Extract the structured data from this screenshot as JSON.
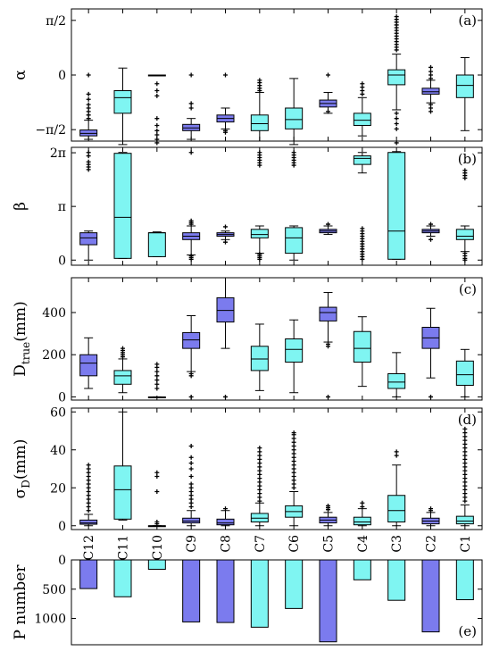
{
  "colors": {
    "blue": "#7b7bee",
    "cyan": "#7ff5f2",
    "stroke": "#000000"
  },
  "chart_data": {
    "type": "boxplot",
    "categories": [
      "C12",
      "C11",
      "C10",
      "C9",
      "C8",
      "C7",
      "C6",
      "C5",
      "C4",
      "C3",
      "C2",
      "C1"
    ],
    "category_colors": [
      "blue",
      "cyan",
      "cyan",
      "blue",
      "blue",
      "cyan",
      "cyan",
      "blue",
      "cyan",
      "cyan",
      "blue",
      "cyan"
    ],
    "panels": [
      {
        "label": "(a)",
        "ylabel": "α",
        "ylim": [
          -1.9,
          1.9
        ],
        "ticks": [
          {
            "v": 1.5708,
            "t": "π/2"
          },
          {
            "v": 0,
            "t": "0"
          },
          {
            "v": -1.5708,
            "t": "−π/2"
          }
        ],
        "boxes": [
          {
            "min": -1.85,
            "q1": -1.75,
            "med": -1.68,
            "q3": -1.58,
            "max": -1.3,
            "outliers": [
              -1.25,
              -1.15,
              -1.05,
              -0.95,
              -0.85,
              -0.7,
              -0.55,
              0.0
            ]
          },
          {
            "min": -2.0,
            "q1": -1.1,
            "med": -0.65,
            "q3": -0.45,
            "max": 0.2,
            "outliers": []
          },
          {
            "min": 0.0,
            "q1": 0.0,
            "med": 0.0,
            "q3": 0.0,
            "max": 0.0,
            "outliers": [
              -0.25,
              -0.45,
              -0.6,
              -1.25,
              -1.45,
              -1.6,
              -1.72,
              -1.85,
              -1.95
            ]
          },
          {
            "min": -1.85,
            "q1": -1.6,
            "med": -1.52,
            "q3": -1.42,
            "max": -1.25,
            "outliers": [
              -0.95,
              -0.82,
              0.0
            ]
          },
          {
            "min": -1.55,
            "q1": -1.35,
            "med": -1.25,
            "q3": -1.15,
            "max": -0.95,
            "outliers": [
              -1.6,
              -1.65,
              0.0
            ]
          },
          {
            "min": -1.9,
            "q1": -1.6,
            "med": -1.4,
            "q3": -1.15,
            "max": -0.5,
            "outliers": [
              -0.45,
              -0.38,
              -0.3,
              -0.22,
              -0.15
            ]
          },
          {
            "min": -2.0,
            "q1": -1.55,
            "med": -1.28,
            "q3": -0.95,
            "max": -0.1,
            "outliers": []
          },
          {
            "min": -1.1,
            "q1": -0.92,
            "med": -0.82,
            "q3": -0.72,
            "max": -0.5,
            "outliers": [
              -1.05,
              0.0
            ]
          },
          {
            "min": -1.75,
            "q1": -1.45,
            "med": -1.3,
            "q3": -1.1,
            "max": -0.65,
            "outliers": [
              -0.55,
              -0.45,
              -0.35,
              -0.25
            ]
          },
          {
            "min": -1.0,
            "q1": -0.28,
            "med": 0.0,
            "q3": 0.15,
            "max": 0.6,
            "outliers": [
              -1.1,
              -1.25,
              -1.4,
              -1.55,
              -1.95,
              0.72,
              0.8,
              0.88,
              0.96,
              1.04,
              1.12,
              1.2,
              1.28,
              1.36,
              1.44,
              1.52,
              1.6,
              1.68
            ]
          },
          {
            "min": -0.8,
            "q1": -0.55,
            "med": -0.48,
            "q3": -0.38,
            "max": -0.15,
            "outliers": [
              -0.85,
              -0.95,
              -1.05,
              -0.1,
              0.0,
              0.1,
              0.22
            ]
          },
          {
            "min": -1.6,
            "q1": -0.65,
            "med": -0.3,
            "q3": 0.0,
            "max": 0.5,
            "outliers": []
          }
        ]
      },
      {
        "label": "(b)",
        "ylabel": "β",
        "ylim": [
          -0.3,
          6.6
        ],
        "ticks": [
          {
            "v": 6.2832,
            "t": "2π"
          },
          {
            "v": 3.1416,
            "t": "π"
          },
          {
            "v": 0,
            "t": "0"
          }
        ],
        "boxes": [
          {
            "min": 0.0,
            "q1": 0.9,
            "med": 1.3,
            "q3": 1.6,
            "max": 1.7,
            "outliers": [
              5.3,
              5.45,
              5.6,
              5.75,
              6.1,
              6.3
            ]
          },
          {
            "min": 0.1,
            "q1": 0.1,
            "med": 2.5,
            "q3": 6.25,
            "max": 6.3,
            "outliers": []
          },
          {
            "min": 0.2,
            "q1": 0.2,
            "med": 1.6,
            "q3": 1.6,
            "max": 1.65,
            "outliers": []
          },
          {
            "min": 0.3,
            "q1": 1.2,
            "med": 1.4,
            "q3": 1.6,
            "max": 2.0,
            "outliers": [
              0.05,
              0.15,
              0.25,
              2.1,
              2.2,
              2.3,
              6.3
            ]
          },
          {
            "min": 1.2,
            "q1": 1.4,
            "med": 1.5,
            "q3": 1.6,
            "max": 1.7,
            "outliers": [
              1.05,
              1.95
            ]
          },
          {
            "min": 0.4,
            "q1": 1.3,
            "med": 1.5,
            "q3": 1.8,
            "max": 2.0,
            "outliers": [
              0.05,
              0.15,
              0.25,
              0.35,
              5.55,
              5.7,
              5.85,
              6.0,
              6.15,
              6.3
            ]
          },
          {
            "min": 0.0,
            "q1": 0.4,
            "med": 1.3,
            "q3": 1.9,
            "max": 2.0,
            "outliers": [
              5.55,
              5.7,
              5.85,
              6.0,
              6.15,
              6.3
            ]
          },
          {
            "min": 1.5,
            "q1": 1.6,
            "med": 1.7,
            "q3": 1.8,
            "max": 2.0,
            "outliers": [
              2.1
            ]
          },
          {
            "min": 5.1,
            "q1": 5.6,
            "med": 5.95,
            "q3": 6.1,
            "max": 6.3,
            "outliers": [
              0.05,
              0.2,
              0.35,
              0.5,
              0.65,
              0.8,
              0.95,
              1.1,
              1.25,
              1.4,
              1.55,
              1.7,
              1.85
            ]
          },
          {
            "min": 0.05,
            "q1": 0.05,
            "med": 1.7,
            "q3": 6.3,
            "max": 6.35,
            "outliers": []
          },
          {
            "min": 1.4,
            "q1": 1.6,
            "med": 1.7,
            "q3": 1.8,
            "max": 2.0,
            "outliers": [
              1.2,
              2.1
            ]
          },
          {
            "min": 0.5,
            "q1": 1.2,
            "med": 1.4,
            "q3": 1.8,
            "max": 2.0,
            "outliers": [
              0.0,
              0.1,
              0.25,
              0.4,
              4.8,
              4.95,
              5.1,
              5.25
            ]
          }
        ]
      },
      {
        "label": "(c)",
        "ylabel": "D",
        "ylabel_sub": "true",
        "ylabel_tail": "(mm)",
        "ylim": [
          -15,
          565
        ],
        "ticks": [
          {
            "v": 400,
            "t": "400"
          },
          {
            "v": 200,
            "t": "200"
          },
          {
            "v": 0,
            "t": "0"
          }
        ],
        "boxes": [
          {
            "min": 40,
            "q1": 100,
            "med": 160,
            "q3": 200,
            "max": 280,
            "outliers": []
          },
          {
            "min": 20,
            "q1": 60,
            "med": 100,
            "q3": 125,
            "max": 180,
            "outliers": [
              190,
              200,
              210,
              220,
              230
            ]
          },
          {
            "min": 0,
            "q1": 0,
            "med": 0,
            "q3": 0,
            "max": 0,
            "outliers": [
              40,
              60,
              80,
              100,
              120,
              140,
              155
            ]
          },
          {
            "min": 120,
            "q1": 230,
            "med": 270,
            "q3": 305,
            "max": 385,
            "outliers": [
              0,
              100,
              110
            ]
          },
          {
            "min": 230,
            "q1": 355,
            "med": 410,
            "q3": 470,
            "max": 565,
            "outliers": [
              0
            ]
          },
          {
            "min": 30,
            "q1": 125,
            "med": 180,
            "q3": 240,
            "max": 345,
            "outliers": []
          },
          {
            "min": 20,
            "q1": 165,
            "med": 225,
            "q3": 275,
            "max": 365,
            "outliers": []
          },
          {
            "min": 260,
            "q1": 360,
            "med": 400,
            "q3": 425,
            "max": 495,
            "outliers": [
              0,
              240,
              250
            ]
          },
          {
            "min": 50,
            "q1": 165,
            "med": 230,
            "q3": 310,
            "max": 380,
            "outliers": []
          },
          {
            "min": 0,
            "q1": 40,
            "med": 70,
            "q3": 110,
            "max": 210,
            "outliers": []
          },
          {
            "min": 90,
            "q1": 230,
            "med": 280,
            "q3": 330,
            "max": 420,
            "outliers": [
              0
            ]
          },
          {
            "min": 0,
            "q1": 55,
            "med": 105,
            "q3": 170,
            "max": 225,
            "outliers": []
          }
        ]
      },
      {
        "label": "(d)",
        "ylabel": "σ",
        "ylabel_sub": "D",
        "ylabel_tail": "(mm)",
        "ylim": [
          -2,
          62
        ],
        "ticks": [
          {
            "v": 60,
            "t": "60"
          },
          {
            "v": 40,
            "t": "40"
          },
          {
            "v": 20,
            "t": "20"
          },
          {
            "v": 0,
            "t": "0"
          }
        ],
        "boxes": [
          {
            "min": 0,
            "q1": 0.8,
            "med": 1.5,
            "q3": 3,
            "max": 6,
            "outliers": [
              8,
              10,
              12,
              14,
              16,
              18,
              20,
              22,
              24,
              26,
              28,
              30,
              32
            ]
          },
          {
            "min": 3,
            "q1": 3.5,
            "med": 19,
            "q3": 31.5,
            "max": 60,
            "outliers": []
          },
          {
            "min": 0,
            "q1": 0,
            "med": 0,
            "q3": 0,
            "max": 0,
            "outliers": [
              1,
              2,
              18,
              26,
              28
            ]
          },
          {
            "min": 0,
            "q1": 1.5,
            "med": 2.5,
            "q3": 4,
            "max": 8,
            "outliers": [
              10,
              12,
              14,
              16,
              18,
              20,
              22,
              26,
              30,
              33,
              36,
              42
            ]
          },
          {
            "min": 0,
            "q1": 0.5,
            "med": 1.5,
            "q3": 3.5,
            "max": 8,
            "outliers": [
              9
            ]
          },
          {
            "min": 0,
            "q1": 2,
            "med": 4,
            "q3": 6.5,
            "max": 12,
            "outliers": [
              13,
              15,
              17,
              19,
              21,
              23,
              25,
              27,
              29,
              31,
              33,
              35,
              37,
              39,
              41
            ]
          },
          {
            "min": 0,
            "q1": 4.5,
            "med": 7.5,
            "q3": 10.5,
            "max": 18,
            "outliers": [
              20,
              22,
              24,
              26,
              28,
              30,
              32,
              34,
              36,
              38,
              40,
              42,
              44,
              46,
              48,
              49
            ]
          },
          {
            "min": 0,
            "q1": 1.5,
            "med": 3,
            "q3": 4.5,
            "max": 7,
            "outliers": [
              8.5,
              9.5,
              10.5
            ]
          },
          {
            "min": 0,
            "q1": 0.5,
            "med": 2,
            "q3": 4.5,
            "max": 9,
            "outliers": [
              10,
              12
            ]
          },
          {
            "min": 0,
            "q1": 2,
            "med": 8,
            "q3": 16,
            "max": 32,
            "outliers": [
              37,
              39
            ]
          },
          {
            "min": 0,
            "q1": 1,
            "med": 2.5,
            "q3": 4,
            "max": 7,
            "outliers": [
              8,
              9
            ]
          },
          {
            "min": 0,
            "q1": 1,
            "med": 2.5,
            "q3": 5,
            "max": 11,
            "outliers": [
              13,
              15,
              17,
              19,
              21,
              23,
              25,
              27,
              29,
              31,
              33,
              35,
              37,
              39,
              41,
              43,
              45,
              47,
              49,
              51
            ]
          }
        ]
      },
      {
        "label": "(e)",
        "type": "bar",
        "ylabel": "P number",
        "ylim": [
          0,
          1450
        ],
        "inverted": true,
        "ticks": [
          {
            "v": 0,
            "t": "0"
          },
          {
            "v": 500,
            "t": "500"
          },
          {
            "v": 1000,
            "t": "1000"
          }
        ],
        "values": [
          490,
          630,
          160,
          1060,
          1070,
          1150,
          830,
          1400,
          340,
          690,
          1230,
          680
        ]
      }
    ]
  }
}
